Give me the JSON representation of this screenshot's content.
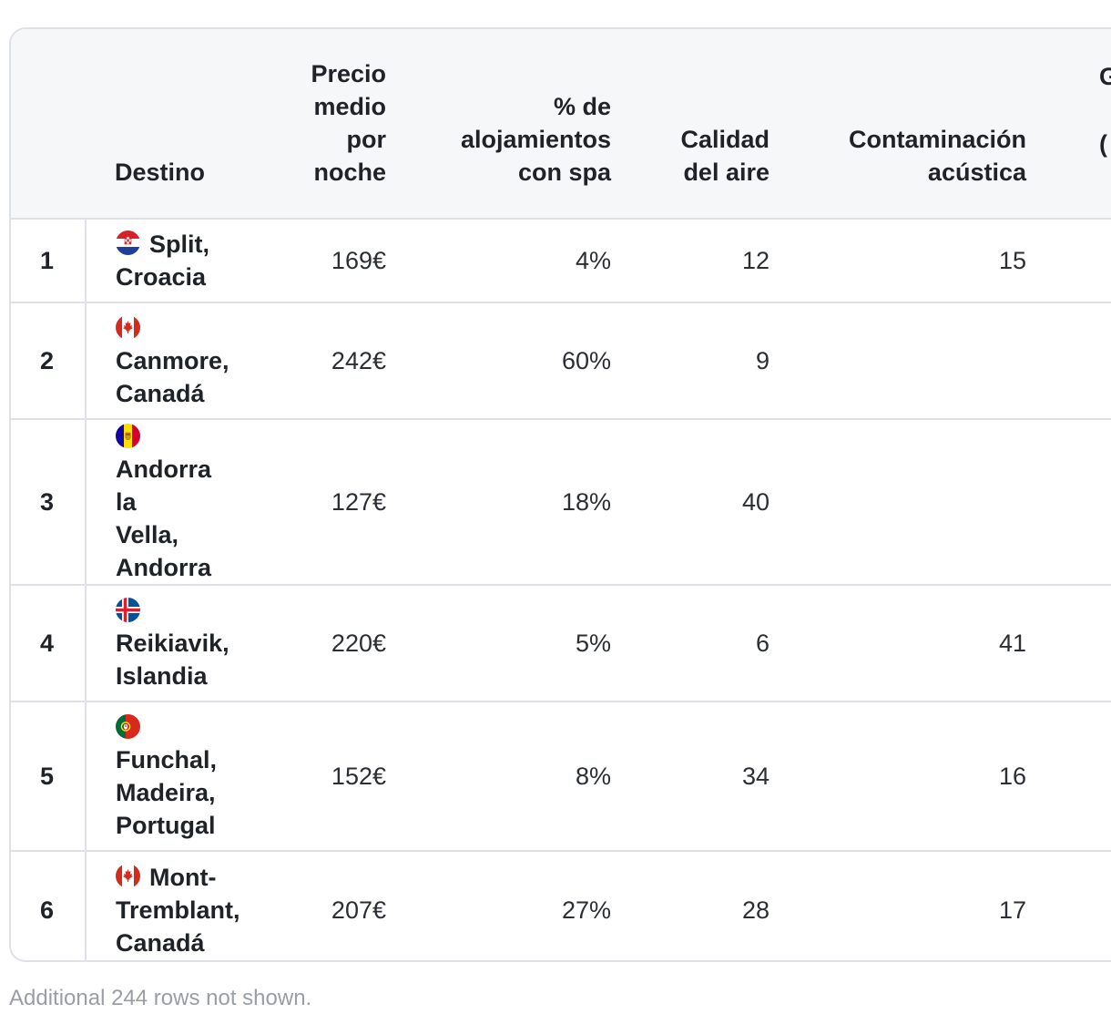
{
  "table": {
    "headers": {
      "rank": "",
      "destination": "Destino",
      "price": [
        "Precio",
        "medio",
        "por",
        "noche"
      ],
      "spa": [
        "% de",
        "alojamientos",
        "con spa"
      ],
      "air": [
        "Calidad",
        "del aire"
      ],
      "noise": [
        "Contaminación",
        "acústica"
      ],
      "next_partial": [
        "G",
        "("
      ]
    },
    "rows": [
      {
        "rank": "1",
        "flag": "croatia-flag-icon",
        "dest_lines": [
          "Split,",
          "Croacia"
        ],
        "flag_inline": true,
        "price": "169€",
        "spa": "4%",
        "air": "12",
        "noise": "15"
      },
      {
        "rank": "2",
        "flag": "canada-flag-icon",
        "dest_lines": [
          "Canmore,",
          "Canadá"
        ],
        "flag_inline": false,
        "price": "242€",
        "spa": "60%",
        "air": "9",
        "noise": ""
      },
      {
        "rank": "3",
        "flag": "andorra-flag-icon",
        "dest_lines": [
          "Andorra la",
          "Vella,",
          "Andorra"
        ],
        "flag_inline": false,
        "price": "127€",
        "spa": "18%",
        "air": "40",
        "noise": ""
      },
      {
        "rank": "4",
        "flag": "iceland-flag-icon",
        "dest_lines": [
          "Reikiavik,",
          "Islandia"
        ],
        "flag_inline": false,
        "price": "220€",
        "spa": "5%",
        "air": "6",
        "noise": "41"
      },
      {
        "rank": "5",
        "flag": "portugal-flag-icon",
        "dest_lines": [
          "Funchal,",
          "Madeira,",
          "Portugal"
        ],
        "flag_inline": false,
        "price": "152€",
        "spa": "8%",
        "air": "34",
        "noise": "16"
      },
      {
        "rank": "6",
        "flag": "canada-flag-icon",
        "dest_lines": [
          "Mont-",
          "Tremblant,",
          "Canadá"
        ],
        "flag_inline": true,
        "price": "207€",
        "spa": "27%",
        "air": "28",
        "noise": "17"
      }
    ]
  },
  "footer": {
    "note": "Additional 244 rows not shown."
  },
  "colors": {
    "border": "#dfe1e6",
    "header_bg": "#f6f7f9",
    "footer_text": "#9a9ea4"
  }
}
